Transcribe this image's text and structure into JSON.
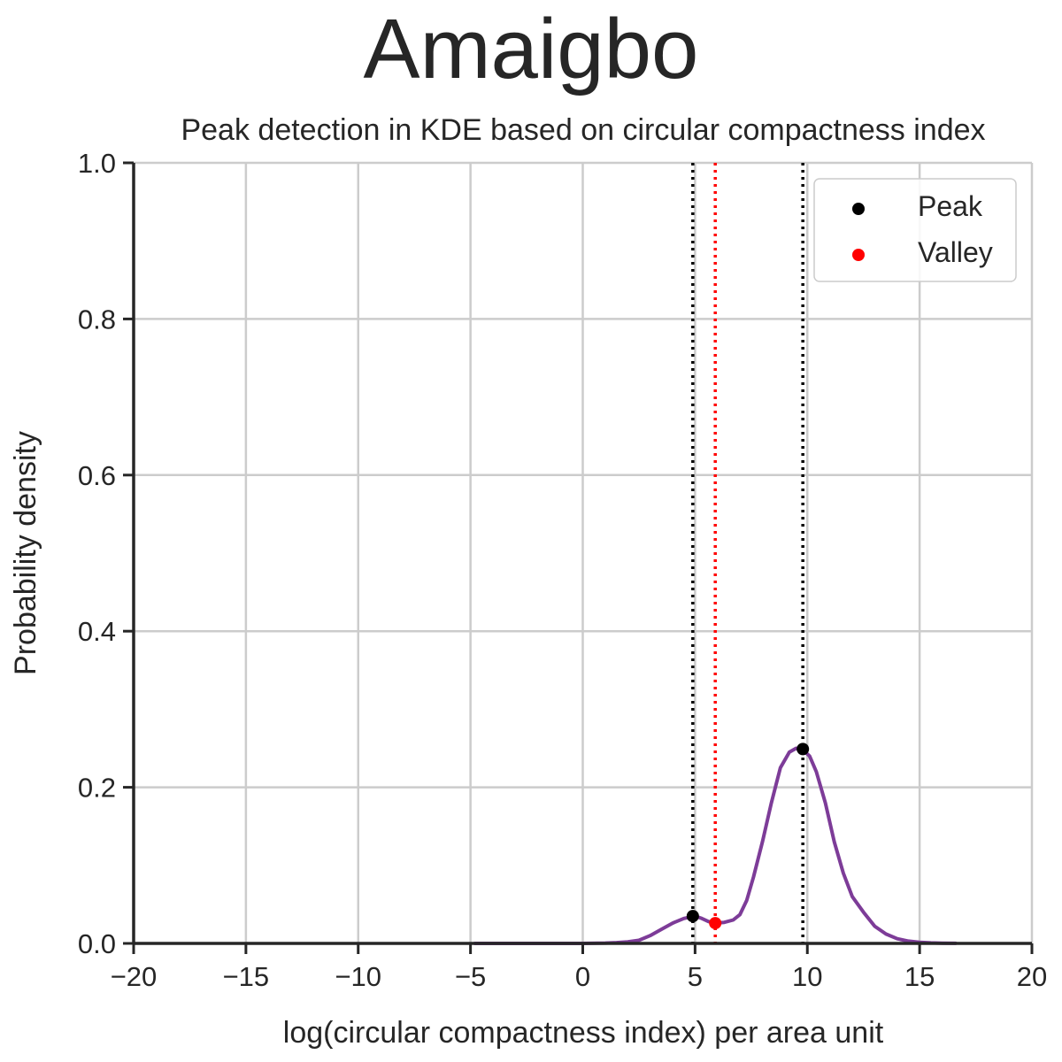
{
  "chart_data": {
    "type": "line",
    "suptitle": "Amaigbo",
    "title": "Peak detection in KDE based on circular compactness index",
    "xlabel": "log(circular compactness index) per area unit",
    "ylabel": "Probability density",
    "xlim": [
      -20,
      20
    ],
    "ylim": [
      0,
      1
    ],
    "xticks": [
      -20,
      -15,
      -10,
      -5,
      0,
      5,
      10,
      15,
      20
    ],
    "xtick_labels": [
      "−20",
      "−15",
      "−10",
      "−5",
      "0",
      "5",
      "10",
      "15",
      "20"
    ],
    "yticks": [
      0,
      0.2,
      0.4,
      0.6,
      0.8,
      1.0
    ],
    "ytick_labels": [
      "0.0",
      "0.2",
      "0.4",
      "0.6",
      "0.8",
      "1.0"
    ],
    "grid": true,
    "legend_position": "top-right",
    "series": [
      {
        "color": "#7d3c98",
        "x": [
          -4.8,
          -3,
          -1,
          0,
          1,
          1.5,
          2,
          2.5,
          3,
          3.5,
          4,
          4.5,
          5,
          5.3,
          5.6,
          5.9,
          6.3,
          6.7,
          7,
          7.3,
          7.6,
          8,
          8.4,
          8.8,
          9.2,
          9.5,
          9.8,
          10.1,
          10.4,
          10.8,
          11.2,
          11.6,
          12,
          12.5,
          13,
          13.5,
          14,
          14.5,
          15,
          15.5,
          16,
          16.6
        ],
        "y": [
          0,
          0,
          0,
          0,
          0.0005,
          0.001,
          0.002,
          0.004,
          0.01,
          0.018,
          0.026,
          0.032,
          0.035,
          0.032,
          0.028,
          0.026,
          0.027,
          0.03,
          0.037,
          0.055,
          0.085,
          0.13,
          0.18,
          0.225,
          0.245,
          0.25,
          0.248,
          0.24,
          0.22,
          0.18,
          0.13,
          0.09,
          0.06,
          0.04,
          0.022,
          0.012,
          0.006,
          0.003,
          0.0015,
          0.0007,
          0.0003,
          0.0001
        ]
      }
    ],
    "peaks": {
      "label": "Peak",
      "color": "#000000",
      "points": [
        {
          "x": 4.9,
          "y": 0.035
        },
        {
          "x": 9.8,
          "y": 0.249
        }
      ]
    },
    "valleys": {
      "label": "Valley",
      "color": "#ff0000",
      "points": [
        {
          "x": 5.9,
          "y": 0.026
        }
      ]
    }
  }
}
